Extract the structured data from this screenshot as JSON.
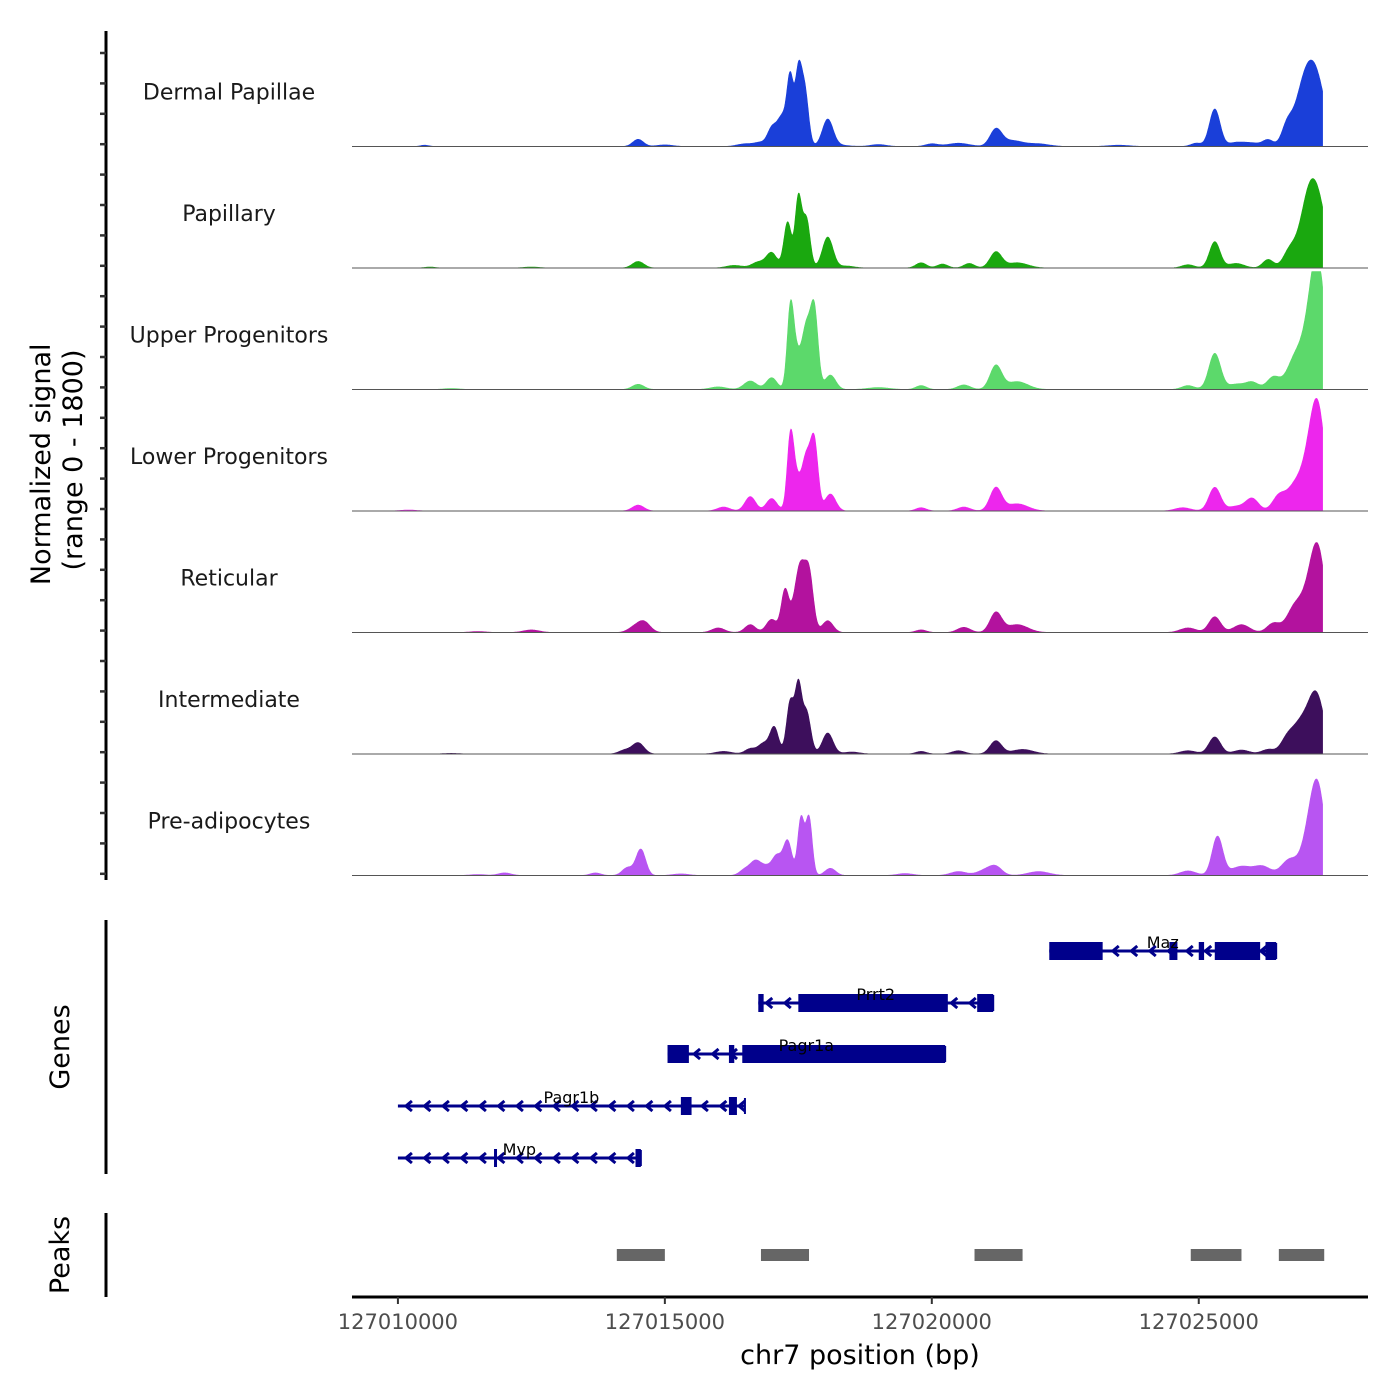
{
  "chart_data": {
    "type": "area",
    "title": "",
    "xlabel": "chr7 position (bp)",
    "ylabel": "Normalized signal\n(range 0 - 1800)",
    "ylabel_lines": [
      "Normalized signal",
      "(range 0 - 1800)"
    ],
    "ylim": [
      0,
      1800
    ],
    "xlim": [
      127009140,
      127028170
    ],
    "data_end": 127027320,
    "x_ticks": [
      127010000,
      127015000,
      127020000,
      127025000
    ],
    "x_tick_labels": [
      "127010000",
      "127015000",
      "127020000",
      "127025000"
    ],
    "grid": false,
    "legend": "none",
    "tracks": [
      {
        "name": "Dermal Papillae",
        "color": "#1a3fd9",
        "peaks": [
          [
            127010500,
            20,
            80
          ],
          [
            127014500,
            110,
            100
          ],
          [
            127015000,
            25,
            150
          ],
          [
            127016500,
            40,
            150
          ],
          [
            127016800,
            60,
            120
          ],
          [
            127017000,
            240,
            80
          ],
          [
            127017200,
            460,
            100
          ],
          [
            127017350,
            950,
            60
          ],
          [
            127017500,
            1050,
            60
          ],
          [
            127017620,
            850,
            70
          ],
          [
            127018050,
            400,
            100
          ],
          [
            127018200,
            25,
            200
          ],
          [
            127019000,
            30,
            150
          ],
          [
            127020000,
            40,
            120
          ],
          [
            127020500,
            50,
            200
          ],
          [
            127021200,
            250,
            110
          ],
          [
            127021500,
            90,
            200
          ],
          [
            127022000,
            40,
            200
          ],
          [
            127023500,
            20,
            200
          ],
          [
            127024950,
            50,
            100
          ],
          [
            127025300,
            570,
            100
          ],
          [
            127025700,
            60,
            150
          ],
          [
            127026000,
            50,
            150
          ],
          [
            127026300,
            100,
            100
          ],
          [
            127026650,
            280,
            100
          ],
          [
            127026900,
            380,
            150
          ],
          [
            127027150,
            1200,
            200
          ]
        ]
      },
      {
        "name": "Papillary",
        "color": "#1aa80f",
        "peaks": [
          [
            127010600,
            15,
            100
          ],
          [
            127012500,
            15,
            150
          ],
          [
            127014500,
            100,
            110
          ],
          [
            127016300,
            40,
            150
          ],
          [
            127016750,
            90,
            120
          ],
          [
            127017000,
            230,
            100
          ],
          [
            127017300,
            700,
            70
          ],
          [
            127017500,
            1050,
            60
          ],
          [
            127017650,
            750,
            70
          ],
          [
            127018050,
            470,
            100
          ],
          [
            127018400,
            30,
            150
          ],
          [
            127019800,
            80,
            100
          ],
          [
            127020200,
            60,
            100
          ],
          [
            127020700,
            70,
            100
          ],
          [
            127021200,
            240,
            110
          ],
          [
            127021600,
            80,
            200
          ],
          [
            127024800,
            50,
            120
          ],
          [
            127025300,
            400,
            100
          ],
          [
            127025700,
            70,
            150
          ],
          [
            127026300,
            130,
            100
          ],
          [
            127026700,
            250,
            120
          ],
          [
            127027000,
            500,
            150
          ],
          [
            127027200,
            1100,
            180
          ]
        ]
      },
      {
        "name": "Upper Progenitors",
        "color": "#5cd96b",
        "peaks": [
          [
            127011000,
            15,
            150
          ],
          [
            127014500,
            80,
            110
          ],
          [
            127016000,
            40,
            150
          ],
          [
            127016600,
            130,
            120
          ],
          [
            127017000,
            180,
            100
          ],
          [
            127017350,
            1050,
            60
          ],
          [
            127017450,
            550,
            90
          ],
          [
            127017800,
            1180,
            70
          ],
          [
            127017650,
            900,
            80
          ],
          [
            127018100,
            220,
            100
          ],
          [
            127019000,
            30,
            200
          ],
          [
            127019800,
            60,
            100
          ],
          [
            127020600,
            70,
            120
          ],
          [
            127021200,
            360,
            110
          ],
          [
            127021600,
            120,
            200
          ],
          [
            127024800,
            60,
            120
          ],
          [
            127025300,
            550,
            110
          ],
          [
            127025700,
            80,
            150
          ],
          [
            127026000,
            110,
            120
          ],
          [
            127026400,
            190,
            120
          ],
          [
            127026800,
            450,
            150
          ],
          [
            127027100,
            900,
            150
          ],
          [
            127027250,
            1450,
            130
          ]
        ]
      },
      {
        "name": "Lower Progenitors",
        "color": "#ed26ed",
        "peaks": [
          [
            127010200,
            15,
            150
          ],
          [
            127014500,
            90,
            110
          ],
          [
            127016100,
            60,
            120
          ],
          [
            127016600,
            220,
            100
          ],
          [
            127017000,
            190,
            100
          ],
          [
            127017350,
            960,
            60
          ],
          [
            127017450,
            500,
            90
          ],
          [
            127017800,
            1020,
            70
          ],
          [
            127017650,
            780,
            80
          ],
          [
            127018100,
            260,
            100
          ],
          [
            127019800,
            50,
            100
          ],
          [
            127020600,
            60,
            120
          ],
          [
            127021200,
            350,
            110
          ],
          [
            127021600,
            110,
            200
          ],
          [
            127024700,
            50,
            150
          ],
          [
            127025300,
            360,
            110
          ],
          [
            127025700,
            70,
            150
          ],
          [
            127026000,
            190,
            120
          ],
          [
            127026500,
            220,
            120
          ],
          [
            127026800,
            360,
            150
          ],
          [
            127027100,
            800,
            150
          ],
          [
            127027250,
            1150,
            130
          ]
        ]
      },
      {
        "name": "Reticular",
        "color": "#b3129e",
        "peaks": [
          [
            127011500,
            15,
            150
          ],
          [
            127012500,
            40,
            150
          ],
          [
            127014400,
            60,
            110
          ],
          [
            127014600,
            170,
            120
          ],
          [
            127016000,
            70,
            120
          ],
          [
            127016600,
            120,
            100
          ],
          [
            127017000,
            200,
            100
          ],
          [
            127017250,
            630,
            70
          ],
          [
            127017450,
            420,
            90
          ],
          [
            127017700,
            900,
            80
          ],
          [
            127017550,
            720,
            80
          ],
          [
            127018050,
            180,
            100
          ],
          [
            127019800,
            40,
            100
          ],
          [
            127020600,
            80,
            120
          ],
          [
            127021200,
            300,
            110
          ],
          [
            127021600,
            120,
            200
          ],
          [
            127024800,
            70,
            150
          ],
          [
            127025300,
            240,
            110
          ],
          [
            127025800,
            120,
            150
          ],
          [
            127026400,
            140,
            120
          ],
          [
            127026800,
            380,
            150
          ],
          [
            127027100,
            600,
            150
          ],
          [
            127027250,
            950,
            130
          ]
        ]
      },
      {
        "name": "Intermediate",
        "color": "#3d0f5c",
        "peaks": [
          [
            127011000,
            10,
            150
          ],
          [
            127014250,
            60,
            110
          ],
          [
            127014500,
            170,
            110
          ],
          [
            127016100,
            40,
            150
          ],
          [
            127016600,
            80,
            100
          ],
          [
            127016850,
            160,
            100
          ],
          [
            127017050,
            400,
            80
          ],
          [
            127017350,
            800,
            70
          ],
          [
            127017500,
            950,
            60
          ],
          [
            127017650,
            650,
            80
          ],
          [
            127018050,
            320,
            100
          ],
          [
            127018500,
            30,
            150
          ],
          [
            127019800,
            40,
            100
          ],
          [
            127020500,
            50,
            120
          ],
          [
            127021200,
            200,
            110
          ],
          [
            127021700,
            70,
            200
          ],
          [
            127024800,
            50,
            150
          ],
          [
            127025300,
            260,
            110
          ],
          [
            127025800,
            60,
            150
          ],
          [
            127026300,
            70,
            120
          ],
          [
            127026650,
            210,
            120
          ],
          [
            127026900,
            420,
            150
          ],
          [
            127027200,
            900,
            150
          ]
        ]
      },
      {
        "name": "Pre-adipocytes",
        "color": "#b855f2",
        "peaks": [
          [
            127011500,
            15,
            150
          ],
          [
            127012000,
            40,
            120
          ],
          [
            127013700,
            40,
            100
          ],
          [
            127014300,
            120,
            100
          ],
          [
            127014550,
            400,
            90
          ],
          [
            127015300,
            25,
            150
          ],
          [
            127016500,
            90,
            100
          ],
          [
            127016700,
            210,
            100
          ],
          [
            127016900,
            120,
            100
          ],
          [
            127017100,
            290,
            90
          ],
          [
            127017300,
            520,
            80
          ],
          [
            127017550,
            870,
            60
          ],
          [
            127017700,
            880,
            60
          ],
          [
            127018100,
            110,
            100
          ],
          [
            127019500,
            30,
            150
          ],
          [
            127020500,
            60,
            150
          ],
          [
            127021000,
            80,
            150
          ],
          [
            127021200,
            120,
            120
          ],
          [
            127022000,
            60,
            200
          ],
          [
            127024800,
            70,
            150
          ],
          [
            127025350,
            590,
            100
          ],
          [
            127025800,
            140,
            200
          ],
          [
            127026200,
            130,
            150
          ],
          [
            127026700,
            240,
            150
          ],
          [
            127027100,
            700,
            150
          ],
          [
            127027250,
            980,
            130
          ]
        ]
      }
    ],
    "genes": [
      {
        "name": "Maz",
        "strand": "-",
        "row": 0,
        "start": 127022200,
        "end": 127026450,
        "exons": [
          [
            127022200,
            127023200
          ],
          [
            127024450,
            127024600
          ],
          [
            127025000,
            127025100
          ],
          [
            127025300,
            127026150
          ],
          [
            127026250,
            127026450
          ]
        ]
      },
      {
        "name": "Prrt2",
        "strand": "-",
        "row": 1,
        "start": 127016750,
        "end": 127021150,
        "exons": [
          [
            127016750,
            127016850
          ],
          [
            127017500,
            127020300
          ],
          [
            127020850,
            127021150
          ]
        ]
      },
      {
        "name": "Pagr1a",
        "strand": "-",
        "row": 2,
        "start": 127015050,
        "end": 127020250,
        "exons": [
          [
            127015050,
            127015450
          ],
          [
            127016200,
            127016300
          ],
          [
            127016450,
            127020250
          ]
        ]
      },
      {
        "name": "Pagr1b",
        "strand": "-",
        "row": 3,
        "start": 127010000,
        "end": 127016500,
        "exons": [
          [
            127015300,
            127015500
          ],
          [
            127016200,
            127016350
          ]
        ]
      },
      {
        "name": "Mvp",
        "strand": "-",
        "row": 4,
        "start": 127010000,
        "end": 127014550,
        "exons": [
          [
            127011800,
            127011850
          ],
          [
            127014450,
            127014550
          ]
        ]
      }
    ],
    "gene_color": "#00008b",
    "peaks_track": [
      [
        127014100,
        127015000
      ],
      [
        127016800,
        127017700
      ],
      [
        127020800,
        127021700
      ],
      [
        127024850,
        127025800
      ],
      [
        127026500,
        127027350
      ]
    ],
    "peak_color": "#666666",
    "panel_labels": {
      "genes": "Genes",
      "peaks": "Peaks"
    }
  }
}
